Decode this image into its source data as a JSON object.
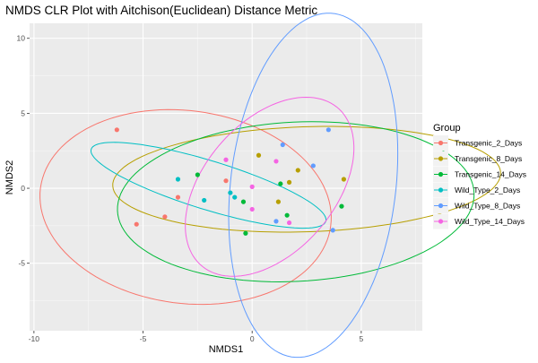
{
  "chart_data": {
    "type": "scatter",
    "title": "NMDS CLR Plot with Aitchison(Euclidean) Distance Metric",
    "xlabel": "NMDS1",
    "ylabel": "NMDS2",
    "xlim": [
      -10.2,
      7.8
    ],
    "ylim": [
      -9.5,
      11
    ],
    "xticks": [
      -10,
      -5,
      0,
      5
    ],
    "yticks": [
      -5,
      0,
      5,
      10
    ],
    "grid": true,
    "legend": {
      "title": "Group",
      "placement": "right"
    },
    "series": [
      {
        "name": "Transgenic_2_Days",
        "color": "#F8766D",
        "points": [
          [
            -6.2,
            3.9
          ],
          [
            -5.3,
            -2.4
          ],
          [
            -4.0,
            -1.9
          ],
          [
            -3.4,
            -0.6
          ],
          [
            -1.2,
            0.5
          ]
        ],
        "ellipse": {
          "cx": -3.05,
          "cy": -1.25,
          "rx": 6.2,
          "ry": 6.95,
          "angle": 52
        }
      },
      {
        "name": "Transgenic_8_Days",
        "color": "#B79F00",
        "points": [
          [
            0.3,
            2.2
          ],
          [
            2.1,
            1.2
          ],
          [
            1.7,
            0.4
          ],
          [
            1.2,
            -0.9
          ],
          [
            4.2,
            0.6
          ]
        ],
        "ellipse": {
          "cx": 2.5,
          "cy": 0.6,
          "rx": 8.9,
          "ry": 3.5,
          "angle": 3
        }
      },
      {
        "name": "Transgenic_14_Days",
        "color": "#00BA38",
        "points": [
          [
            1.3,
            0.3
          ],
          [
            -2.5,
            0.9
          ],
          [
            -0.4,
            -0.9
          ],
          [
            1.6,
            -1.8
          ],
          [
            -0.3,
            -3.0
          ],
          [
            4.1,
            -1.2
          ]
        ],
        "ellipse": {
          "cx": 2.0,
          "cy": -0.9,
          "rx": 8.2,
          "ry": 5.3,
          "angle": 6
        }
      },
      {
        "name": "Wild_Type_2_Days",
        "color": "#00BFC4",
        "points": [
          [
            -3.4,
            0.6
          ],
          [
            -2.2,
            -0.8
          ],
          [
            -1.0,
            -0.3
          ],
          [
            -0.8,
            -0.6
          ]
        ],
        "ellipse": {
          "cx": -2.0,
          "cy": 0.2,
          "rx": 5.9,
          "ry": 1.55,
          "angle": -25
        }
      },
      {
        "name": "Wild_Type_8_Days",
        "color": "#619CFF",
        "points": [
          [
            1.4,
            2.9
          ],
          [
            3.5,
            3.9
          ],
          [
            2.8,
            1.5
          ],
          [
            1.1,
            -2.2
          ],
          [
            3.7,
            -2.8
          ]
        ],
        "ellipse": {
          "cx": 2.8,
          "cy": 0.2,
          "rx": 11.5,
          "ry": 3.8,
          "angle": 86
        }
      },
      {
        "name": "Wild_Type_14_Days",
        "color": "#F564E3",
        "points": [
          [
            -1.2,
            1.9
          ],
          [
            0.0,
            0.1
          ],
          [
            1.1,
            1.8
          ],
          [
            1.7,
            -2.3
          ],
          [
            0.0,
            -1.4
          ]
        ],
        "ellipse": {
          "cx": 0.8,
          "cy": 0.1,
          "rx": 6.3,
          "ry": 3.3,
          "angle": 68
        }
      }
    ]
  }
}
